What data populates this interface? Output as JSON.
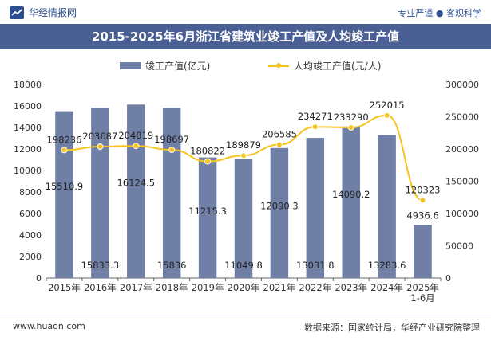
{
  "header": {
    "brand": "华经情报网",
    "tagline": "专业严谨 ● 客观科学"
  },
  "footer": {
    "website": "www.huaon.com",
    "source": "数据来源：国家统计局，华经产业研究院整理"
  },
  "colors": {
    "bar": "#6f7fa6",
    "line": "#f7c31e",
    "title_bg": "#4a5f93",
    "brand_text": "#2d4f8e"
  },
  "chart_data": {
    "type": "bar",
    "title": "2015-2025年6月浙江省建筑业竣工产值及人均竣工产值",
    "categories": [
      "2015年",
      "2016年",
      "2017年",
      "2018年",
      "2019年",
      "2020年",
      "2021年",
      "2022年",
      "2023年",
      "2024年",
      "2025年 1-6月"
    ],
    "series": [
      {
        "name": "竣工产值(亿元)",
        "type": "bar",
        "axis": "left",
        "values": [
          15510.9,
          15833.3,
          16124.5,
          15836,
          11215.3,
          11049.8,
          12090.3,
          13031.8,
          14090.2,
          13283.6,
          4936.6
        ],
        "labels": [
          "15510.9",
          "15833.3",
          "16124.5",
          "15836",
          "11215.3",
          "11049.8",
          "12090.3",
          "13031.8",
          "14090.2",
          "13283.6",
          "4936.6"
        ]
      },
      {
        "name": "人均竣工产值(元/人)",
        "type": "line",
        "axis": "right",
        "values": [
          198236,
          203687,
          204819,
          198697,
          180822,
          189879,
          206585,
          234271,
          233290,
          252015,
          120323
        ],
        "labels": [
          "198236",
          "203687",
          "204819",
          "198697",
          "180822",
          "189879",
          "206585",
          "234271",
          "233290",
          "252015",
          "120323"
        ]
      }
    ],
    "y_left": {
      "min": 0,
      "max": 18000,
      "step": 2000
    },
    "y_right": {
      "min": 0,
      "max": 300000,
      "step": 50000
    },
    "legend_position": "top-center",
    "grid": false
  }
}
